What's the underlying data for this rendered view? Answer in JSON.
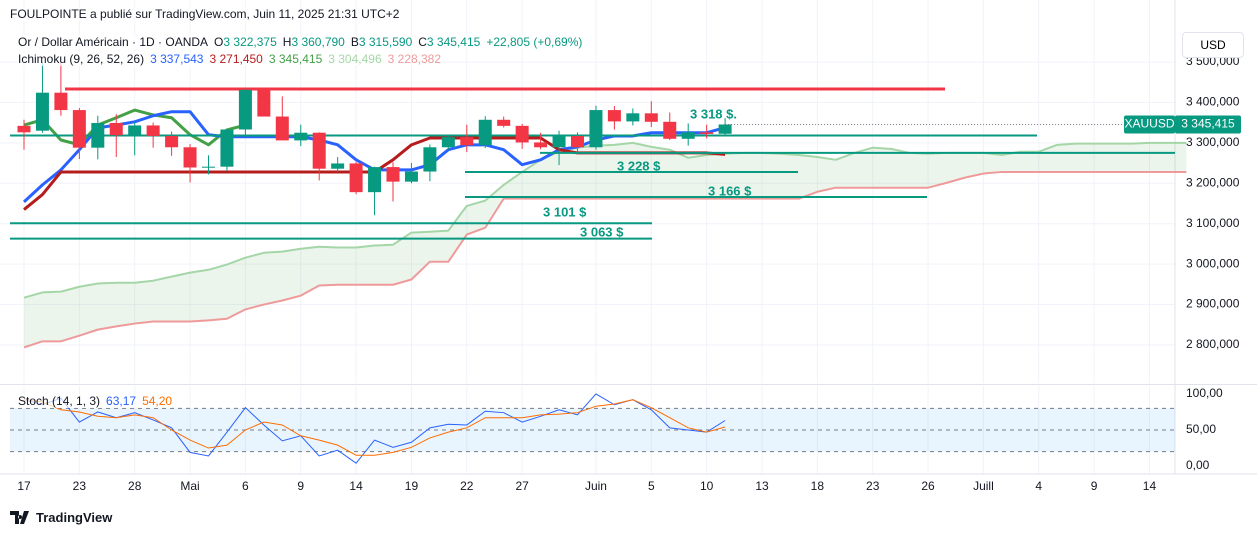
{
  "header": {
    "publisher": "FOULPOINTE a publié sur TradingView.com, Juin 11, 2025 21:31 UTC+2",
    "symbol": "Or / Dollar Américain · 1D · OANDA",
    "ohlc": [
      {
        "label": "O",
        "value": "3 322,375"
      },
      {
        "label": "H",
        "value": "3 360,790"
      },
      {
        "label": "B",
        "value": "3 315,590"
      },
      {
        "label": "C",
        "value": "3 345,415"
      }
    ],
    "change": "+22,805 (+0,69%)",
    "ichimoku": {
      "label": "Ichimoku (9, 26, 52, 26)",
      "values": [
        "3 337,543",
        "3 271,450",
        "3 345,415",
        "3 304,496",
        "3 228,382"
      ]
    },
    "stoch": {
      "label": "Stoch (14, 1, 3)",
      "values": [
        "63,17",
        "54,20"
      ]
    },
    "currency": "USD",
    "brand": "TradingView"
  },
  "chart_data": {
    "type": "candlestick",
    "categories": [
      "17",
      null,
      null,
      "23",
      null,
      null,
      "28",
      null,
      null,
      "Mai",
      null,
      null,
      "6",
      null,
      null,
      "9",
      null,
      null,
      "14",
      null,
      null,
      "19",
      null,
      null,
      "22",
      null,
      null,
      "27",
      null,
      null,
      null,
      "Juin",
      null,
      null,
      "5",
      null,
      null,
      "10",
      null,
      null,
      "13",
      null,
      null,
      "18",
      null,
      null,
      "23",
      null,
      null,
      "26",
      null,
      null,
      "Juill",
      null,
      null,
      "4",
      null,
      null,
      "9",
      null,
      null,
      "14",
      null,
      null
    ],
    "open": [
      3342,
      3330,
      3424,
      3381,
      3288,
      3349,
      3319,
      3343,
      3317,
      3289,
      3239,
      3241,
      3333,
      3431,
      3365,
      3306,
      3325,
      3236,
      3249,
      3178,
      3240,
      3204,
      3229,
      3289,
      3314,
      3294,
      3357,
      3342,
      3301,
      3289,
      3317,
      3289,
      3381,
      3353,
      3373,
      3352,
      3310,
      3326,
      3322.375,
      null,
      null,
      null,
      null,
      null,
      null,
      null,
      null,
      null,
      null,
      null,
      null,
      null,
      null,
      null,
      null,
      null,
      null,
      null,
      null,
      null,
      null,
      null,
      null,
      null
    ],
    "high": [
      3357,
      3500,
      3500,
      3386,
      3367,
      3371,
      3352,
      3350,
      3328,
      3297,
      3269,
      3334,
      3437,
      3435,
      3415,
      3345,
      3326,
      3265,
      3253,
      3241,
      3252,
      3250,
      3296,
      3320,
      3345,
      3366,
      3365,
      3347,
      3325,
      3330,
      3326,
      3392,
      3391,
      3385,
      3403,
      3375,
      3348,
      3345,
      3360.79,
      null,
      null,
      null,
      null,
      null,
      null,
      null,
      null,
      null,
      null,
      null,
      null,
      null,
      null,
      null,
      null,
      null,
      null,
      null,
      null,
      null,
      null,
      null,
      null,
      null
    ],
    "low": [
      3283,
      3325,
      3367,
      3260,
      3259,
      3265,
      3269,
      3288,
      3268,
      3202,
      3222,
      3230,
      3319,
      3367,
      3306,
      3292,
      3207,
      3228,
      3173,
      3121,
      3155,
      3200,
      3205,
      3283,
      3277,
      3287,
      3338,
      3285,
      3284,
      3245,
      3271,
      3283,
      3333,
      3343,
      3339,
      3307,
      3293,
      3311,
      3315.59,
      null,
      null,
      null,
      null,
      null,
      null,
      null,
      null,
      null,
      null,
      null,
      null,
      null,
      null,
      null,
      null,
      null,
      null,
      null,
      null,
      null,
      null,
      null,
      null,
      null
    ],
    "close": [
      3326,
      3424,
      3381,
      3288,
      3349,
      3319,
      3343,
      3317,
      3289,
      3239,
      3241,
      3333,
      3431,
      3365,
      3306,
      3325,
      3236,
      3249,
      3178,
      3240,
      3204,
      3229,
      3289,
      3314,
      3294,
      3357,
      3342,
      3301,
      3289,
      3317,
      3289,
      3381,
      3353,
      3373,
      3352,
      3310,
      3326,
      3322,
      3345.415,
      null,
      null,
      null,
      null,
      null,
      null,
      null,
      null,
      null,
      null,
      null,
      null,
      null,
      null,
      null,
      null,
      null,
      null,
      null,
      null,
      null,
      null,
      null,
      null,
      null
    ],
    "up_color": "#089981",
    "down_color": "#f23645",
    "series": [
      {
        "color": "#a5d6a7",
        "values": [
          2917,
          2930,
          2932,
          2944,
          2952,
          2954,
          2954,
          2959,
          2969,
          2979,
          2986,
          2999,
          3016,
          3028,
          3031,
          3038,
          3043,
          3041,
          3041,
          3046,
          3048,
          3078,
          3080,
          3083,
          3144,
          3157,
          3196,
          3228,
          3258,
          3278,
          3288,
          3293,
          3295,
          3300,
          3290,
          3283,
          3263,
          3270,
          3273,
          3275,
          3275,
          3273,
          3270,
          3265,
          3258,
          3275,
          3288,
          3285,
          3275,
          3273,
          3275,
          3275,
          3275,
          3270,
          3278,
          3278,
          3295,
          3298,
          3298,
          3298,
          3298,
          3300,
          3300,
          3300
        ]
      },
      {
        "color": "#ef9a9a",
        "values": [
          2794,
          2809,
          2809,
          2823,
          2838,
          2846,
          2853,
          2858,
          2858,
          2858,
          2861,
          2865,
          2888,
          2900,
          2910,
          2922,
          2947,
          2949,
          2949,
          2949,
          2949,
          2962,
          3006,
          3006,
          3073,
          3090,
          3162,
          3162,
          3162,
          3162,
          3162,
          3162,
          3162,
          3162,
          3162,
          3162,
          3162,
          3162,
          3162,
          3162,
          3162,
          3162,
          3162,
          3179,
          3189,
          3189,
          3189,
          3189,
          3189,
          3189,
          3201,
          3214,
          3224,
          3228,
          3228,
          3228,
          3228,
          3228,
          3228,
          3228,
          3228,
          3228,
          3228,
          3228
        ]
      },
      {
        "color": "#43a047",
        "values": [
          3344,
          3357,
          3307,
          3295,
          3344,
          3362,
          3381,
          3369,
          3362,
          3320,
          3295,
          3332,
          3344,
          null,
          null,
          null,
          null,
          null,
          null,
          null,
          null,
          null,
          null,
          null,
          null,
          null,
          null,
          null,
          null,
          null,
          null,
          null,
          null,
          null,
          null,
          null,
          null,
          null,
          null,
          null,
          null,
          null,
          null,
          null,
          null,
          null,
          null,
          null,
          null,
          null,
          null,
          null,
          null,
          null,
          null,
          null,
          null,
          null,
          null,
          null,
          null,
          null,
          null,
          null
        ]
      },
      {
        "color": "#2962ff",
        "values": [
          3154,
          3196,
          3233,
          3283,
          3337,
          3344,
          3352,
          3367,
          3377,
          3377,
          3320,
          3315,
          3315,
          3315,
          3315,
          3315,
          3307,
          3295,
          3258,
          3233,
          3233,
          3233,
          3246,
          3283,
          3295,
          3295,
          3283,
          3246,
          3258,
          3283,
          3290,
          3307,
          3317,
          3317,
          3325,
          3325,
          3325,
          3325,
          3337.543,
          null,
          null,
          null,
          null,
          null,
          null,
          null,
          null,
          null,
          null,
          null,
          null,
          null,
          null,
          null,
          null,
          null,
          null,
          null,
          null,
          null,
          null,
          null,
          null,
          null
        ]
      },
      {
        "color": "#b71c1c",
        "values": [
          3135,
          3172,
          3228,
          3228,
          3228,
          3228,
          3228,
          3228,
          3228,
          3228,
          3228,
          3228,
          3228,
          3228,
          3228,
          3228,
          3228,
          3228,
          3228,
          3228,
          3258,
          3295,
          3312,
          3312,
          3312,
          3312,
          3312,
          3312,
          3312,
          3283,
          3275,
          3275,
          3275,
          3275,
          3275,
          3275,
          3275,
          3275,
          3271.45,
          null,
          null,
          null,
          null,
          null,
          null,
          null,
          null,
          null,
          null,
          null,
          null,
          null,
          null,
          null,
          null,
          null,
          null,
          null,
          null,
          null,
          null,
          null,
          null,
          null
        ]
      }
    ],
    "cloud_color": "#43a047",
    "levels": [
      {
        "value": 3433,
        "color": "#f23645"
      },
      {
        "value": 3318,
        "label": "3 318 $.",
        "color": "#089981"
      },
      {
        "value": 3275,
        "color": "#089981"
      },
      {
        "value": 3228,
        "label": "3 228 $",
        "color": "#089981"
      },
      {
        "value": 3166,
        "label": "3 166 $",
        "color": "#089981"
      },
      {
        "value": 3101,
        "label": "3 101 $",
        "color": "#089981"
      },
      {
        "value": 3063,
        "label": "3 063 $",
        "color": "#089981"
      }
    ],
    "price_tag": {
      "symbol": "XAUUSD",
      "label": "3 345,415",
      "color": "#089981"
    },
    "ylim": [
      2706,
      3584
    ],
    "yticks": [
      {
        "value": 3500,
        "label": "3 500,000"
      },
      {
        "value": 3400,
        "label": "3 400,000"
      },
      {
        "value": 3300,
        "label": "3 300,000"
      },
      {
        "value": 3200,
        "label": "3 200,000"
      },
      {
        "value": 3100,
        "label": "3 100,000"
      },
      {
        "value": 3000,
        "label": "3 000,000"
      },
      {
        "value": 2900,
        "label": "2 900,000"
      },
      {
        "value": 2800,
        "label": "2 800,000"
      }
    ],
    "grid": true,
    "stoch": {
      "ylim": [
        -11,
        111
      ],
      "yticks": [
        {
          "value": 100,
          "label": "100,00"
        },
        {
          "value": 50,
          "label": "50,00"
        },
        {
          "value": 0,
          "label": "0,00"
        }
      ],
      "bands": [
        20,
        80
      ],
      "series": [
        {
          "color": "#2962ff",
          "values": [
            92,
            85,
            94,
            61,
            75,
            67,
            74,
            64,
            53,
            19,
            14,
            47,
            81,
            57,
            35,
            42,
            14,
            22,
            4,
            36,
            26,
            33,
            53,
            58,
            57,
            76,
            74,
            61,
            69,
            78,
            71,
            100,
            85,
            92,
            78,
            53,
            50,
            47,
            63.17,
            null,
            null,
            null,
            null,
            null,
            null,
            null,
            null,
            null,
            null,
            null,
            null,
            null,
            null,
            null,
            null,
            null,
            null,
            null,
            null,
            null,
            null,
            null,
            null,
            null
          ]
        },
        {
          "color": "#ff6d00",
          "values": [
            92,
            89,
            78,
            75,
            69,
            67,
            71,
            67,
            50,
            36,
            25,
            29,
            50,
            61,
            57,
            42,
            36,
            29,
            15,
            15,
            19,
            26,
            39,
            47,
            53,
            67,
            67,
            67,
            71,
            72,
            74,
            83,
            86,
            92,
            81,
            67,
            53,
            47,
            54.2,
            null,
            null,
            null,
            null,
            null,
            null,
            null,
            null,
            null,
            null,
            null,
            null,
            null,
            null,
            null,
            null,
            null,
            null,
            null,
            null,
            null,
            null,
            null,
            null,
            null
          ]
        }
      ]
    }
  }
}
